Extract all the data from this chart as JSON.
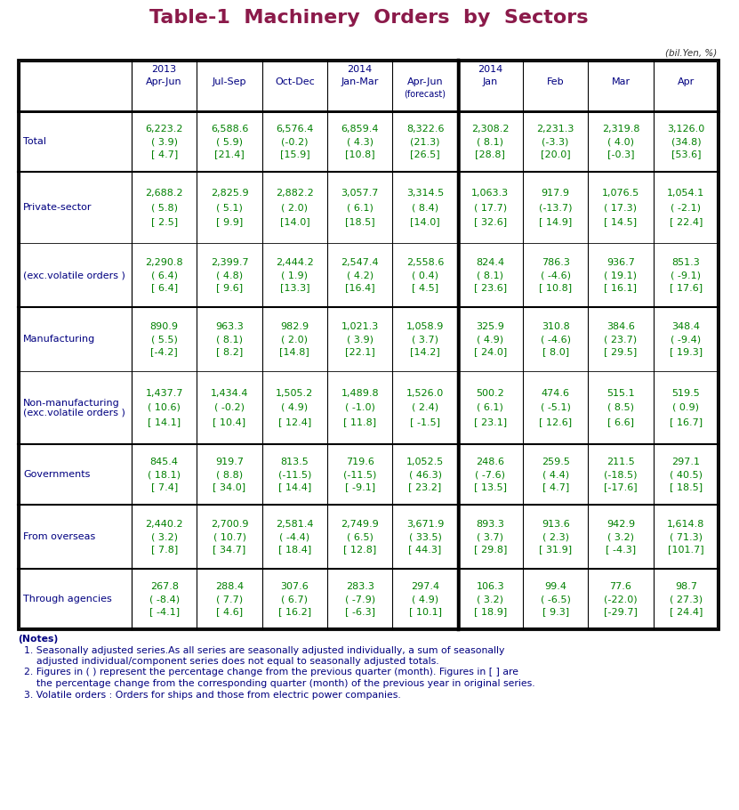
{
  "title": "Table-1  Machinery  Orders  by  Sectors",
  "title_color": "#8B1A4A",
  "subtitle": "(bil.Yen, %)",
  "subtitle_color": "#333333",
  "header_color": "#000080",
  "label_color": "#000080",
  "data_color": "#008000",
  "notes_color": "#000080",
  "col_headers": {
    "year_row": [
      {
        "text": "2013",
        "col": 1
      },
      {
        "text": "2014",
        "col": 4
      },
      {
        "text": "2014",
        "col": 6
      }
    ],
    "period_row": [
      "Apr-Jun",
      "Jul-Sep",
      "Oct-Dec",
      "Jan-Mar",
      "Apr-Jun",
      "Jan",
      "Feb",
      "Mar",
      "Apr"
    ],
    "forecast_col": 5
  },
  "rows": [
    {
      "label": "Total",
      "indent": 0,
      "section_start": true,
      "values": [
        [
          "6,223.2",
          "( 3.9)",
          "[ 4.7]"
        ],
        [
          "6,588.6",
          "( 5.9)",
          "[21.4]"
        ],
        [
          "6,576.4",
          "(-0.2)",
          "[15.9]"
        ],
        [
          "6,859.4",
          "( 4.3)",
          "[10.8]"
        ],
        [
          "8,322.6",
          "(21.3)",
          "[26.5]"
        ],
        [
          "2,308.2",
          "( 8.1)",
          "[28.8]"
        ],
        [
          "2,231.3",
          "(-3.3)",
          "[20.0]"
        ],
        [
          "2,319.8",
          "( 4.0)",
          "[-0.3]"
        ],
        [
          "3,126.0",
          "(34.8)",
          "[53.6]"
        ]
      ]
    },
    {
      "label": "Private-sector",
      "indent": 1,
      "section_start": true,
      "values": [
        [
          "2,688.2",
          "( 5.8)",
          "[ 2.5]"
        ],
        [
          "2,825.9",
          "( 5.1)",
          "[ 9.9]"
        ],
        [
          "2,882.2",
          "( 2.0)",
          "[14.0]"
        ],
        [
          "3,057.7",
          "( 6.1)",
          "[18.5]"
        ],
        [
          "3,314.5",
          "( 8.4)",
          "[14.0]"
        ],
        [
          "1,063.3",
          "( 17.7)",
          "[ 32.6]"
        ],
        [
          "917.9",
          "(-13.7)",
          "[ 14.9]"
        ],
        [
          "1,076.5",
          "( 17.3)",
          "[ 14.5]"
        ],
        [
          "1,054.1",
          "( -2.1)",
          "[ 22.4]"
        ]
      ]
    },
    {
      "label": "(exc.volatile orders )",
      "indent": 1,
      "section_start": false,
      "values": [
        [
          "2,290.8",
          "( 6.4)",
          "[ 6.4]"
        ],
        [
          "2,399.7",
          "( 4.8)",
          "[ 9.6]"
        ],
        [
          "2,444.2",
          "( 1.9)",
          "[13.3]"
        ],
        [
          "2,547.4",
          "( 4.2)",
          "[16.4]"
        ],
        [
          "2,558.6",
          "( 0.4)",
          "[ 4.5]"
        ],
        [
          "824.4",
          "( 8.1)",
          "[ 23.6]"
        ],
        [
          "786.3",
          "( -4.6)",
          "[ 10.8]"
        ],
        [
          "936.7",
          "( 19.1)",
          "[ 16.1]"
        ],
        [
          "851.3",
          "( -9.1)",
          "[ 17.6]"
        ]
      ]
    },
    {
      "label": "Manufacturing",
      "indent": 1,
      "section_start": true,
      "values": [
        [
          "890.9",
          "( 5.5)",
          "[-4.2]"
        ],
        [
          "963.3",
          "( 8.1)",
          "[ 8.2]"
        ],
        [
          "982.9",
          "( 2.0)",
          "[14.8]"
        ],
        [
          "1,021.3",
          "( 3.9)",
          "[22.1]"
        ],
        [
          "1,058.9",
          "( 3.7)",
          "[14.2]"
        ],
        [
          "325.9",
          "( 4.9)",
          "[ 24.0]"
        ],
        [
          "310.8",
          "( -4.6)",
          "[ 8.0]"
        ],
        [
          "384.6",
          "( 23.7)",
          "[ 29.5]"
        ],
        [
          "348.4",
          "( -9.4)",
          "[ 19.3]"
        ]
      ]
    },
    {
      "label": "Non-manufacturing\n(exc.volatile orders )",
      "indent": 1,
      "section_start": false,
      "values": [
        [
          "1,437.7",
          "( 10.6)",
          "[ 14.1]"
        ],
        [
          "1,434.4",
          "( -0.2)",
          "[ 10.4]"
        ],
        [
          "1,505.2",
          "( 4.9)",
          "[ 12.4]"
        ],
        [
          "1,489.8",
          "( -1.0)",
          "[ 11.8]"
        ],
        [
          "1,526.0",
          "( 2.4)",
          "[ -1.5]"
        ],
        [
          "500.2",
          "( 6.1)",
          "[ 23.1]"
        ],
        [
          "474.6",
          "( -5.1)",
          "[ 12.6]"
        ],
        [
          "515.1",
          "( 8.5)",
          "[ 6.6]"
        ],
        [
          "519.5",
          "( 0.9)",
          "[ 16.7]"
        ]
      ]
    },
    {
      "label": "Governments",
      "indent": 1,
      "section_start": true,
      "values": [
        [
          "845.4",
          "( 18.1)",
          "[ 7.4]"
        ],
        [
          "919.7",
          "( 8.8)",
          "[ 34.0]"
        ],
        [
          "813.5",
          "(-11.5)",
          "[ 14.4]"
        ],
        [
          "719.6",
          "(-11.5)",
          "[ -9.1]"
        ],
        [
          "1,052.5",
          "( 46.3)",
          "[ 23.2]"
        ],
        [
          "248.6",
          "( -7.6)",
          "[ 13.5]"
        ],
        [
          "259.5",
          "( 4.4)",
          "[ 4.7]"
        ],
        [
          "211.5",
          "(-18.5)",
          "[-17.6]"
        ],
        [
          "297.1",
          "( 40.5)",
          "[ 18.5]"
        ]
      ]
    },
    {
      "label": "From overseas",
      "indent": 1,
      "section_start": true,
      "values": [
        [
          "2,440.2",
          "( 3.2)",
          "[ 7.8]"
        ],
        [
          "2,700.9",
          "( 10.7)",
          "[ 34.7]"
        ],
        [
          "2,581.4",
          "( -4.4)",
          "[ 18.4]"
        ],
        [
          "2,749.9",
          "( 6.5)",
          "[ 12.8]"
        ],
        [
          "3,671.9",
          "( 33.5)",
          "[ 44.3]"
        ],
        [
          "893.3",
          "( 3.7)",
          "[ 29.8]"
        ],
        [
          "913.6",
          "( 2.3)",
          "[ 31.9]"
        ],
        [
          "942.9",
          "( 3.2)",
          "[ -4.3]"
        ],
        [
          "1,614.8",
          "( 71.3)",
          "[101.7]"
        ]
      ]
    },
    {
      "label": "Through agencies",
      "indent": 1,
      "section_start": true,
      "values": [
        [
          "267.8",
          "( -8.4)",
          "[ -4.1]"
        ],
        [
          "288.4",
          "( 7.7)",
          "[ 4.6]"
        ],
        [
          "307.6",
          "( 6.7)",
          "[ 16.2]"
        ],
        [
          "283.3",
          "( -7.9)",
          "[ -6.3]"
        ],
        [
          "297.4",
          "( 4.9)",
          "[ 10.1]"
        ],
        [
          "106.3",
          "( 3.2)",
          "[ 18.9]"
        ],
        [
          "99.4",
          "( -6.5)",
          "[ 9.3]"
        ],
        [
          "77.6",
          "(-22.0)",
          "[-29.7]"
        ],
        [
          "98.7",
          "( 27.3)",
          "[ 24.4]"
        ]
      ]
    }
  ],
  "notes": [
    "(Notes)",
    "  1. Seasonally adjusted series.As all series are seasonally adjusted individually, a sum of seasonally",
    "      adjusted individual/component series does not equal to seasonally adjusted totals.",
    "  2. Figures in ( ) represent the percentage change from the previous quarter (month). Figures in [ ] are",
    "      the percentage change from the corresponding quarter (month) of the previous year in original series.",
    "  3. Volatile orders : Orders for ships and those from electric power companies."
  ]
}
